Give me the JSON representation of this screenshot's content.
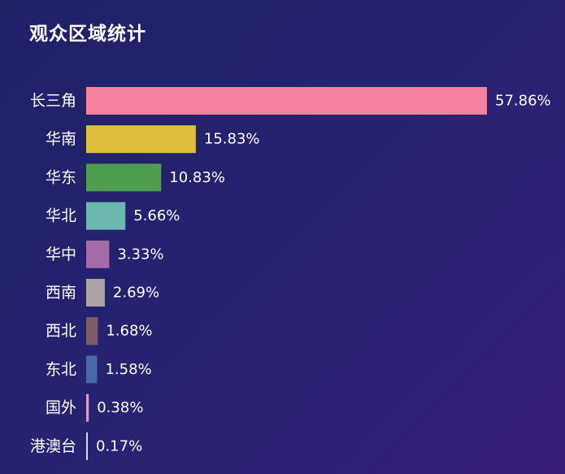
{
  "header": {
    "title": "观众区域统计"
  },
  "chart_data": {
    "type": "bar",
    "orientation": "horizontal",
    "title": "观众区域统计",
    "xlabel": "",
    "ylabel": "",
    "xlim": [
      0,
      57.86
    ],
    "grid": false,
    "legend": "none",
    "categories": [
      "长三角",
      "华南",
      "华东",
      "华北",
      "华中",
      "西南",
      "西北",
      "东北",
      "国外",
      "港澳台"
    ],
    "values": [
      57.86,
      15.83,
      10.83,
      5.66,
      3.33,
      2.69,
      1.68,
      1.58,
      0.38,
      0.17
    ],
    "value_labels": [
      "57.86%",
      "15.83%",
      "10.83%",
      "5.66%",
      "3.33%",
      "2.69%",
      "1.68%",
      "1.58%",
      "0.38%",
      "0.17%"
    ],
    "colors": [
      "#f7819f",
      "#dfbf3e",
      "#4f9e4f",
      "#6cb7ae",
      "#a36ca6",
      "#aba3a8",
      "#7e5c66",
      "#4a67a8",
      "#d69ad0",
      "#dcd8e8"
    ]
  }
}
